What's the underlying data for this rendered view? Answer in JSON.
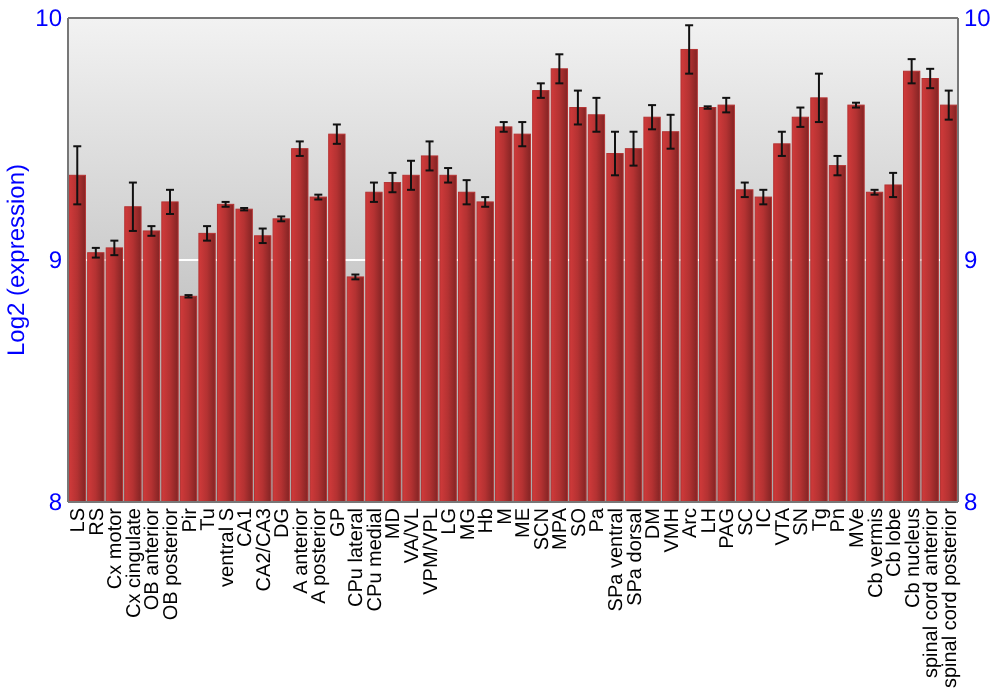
{
  "chart_data": {
    "type": "bar",
    "ylabel": "Log2 (expression)",
    "categories": [
      "LS",
      "RS",
      "Cx motor",
      "Cx cingulate",
      "OB anterior",
      "OB posterior",
      "Pir",
      "Tu",
      "ventral S",
      "CA1",
      "CA2/CA3",
      "DG",
      "A anterior",
      "A posterior",
      "GP",
      "CPu lateral",
      "CPu medial",
      "MD",
      "VA/VL",
      "VPM/VPL",
      "LG",
      "MG",
      "Hb",
      "M",
      "ME",
      "SCN",
      "MPA",
      "SO",
      "Pa",
      "SPa ventral",
      "SPa dorsal",
      "DM",
      "VMH",
      "Arc",
      "LH",
      "PAG",
      "SC",
      "IC",
      "VTA",
      "SN",
      "Tg",
      "Pn",
      "MVe",
      "Cb vermis",
      "Cb lobe",
      "Cb nucleus",
      "spinal cord anterior",
      "spinal cord posterior"
    ],
    "values": [
      9.35,
      9.03,
      9.05,
      9.22,
      9.12,
      9.24,
      8.85,
      9.11,
      9.23,
      9.21,
      9.1,
      9.17,
      9.46,
      9.26,
      9.52,
      8.93,
      9.28,
      9.32,
      9.35,
      9.43,
      9.35,
      9.28,
      9.24,
      9.55,
      9.52,
      9.7,
      9.79,
      9.63,
      9.6,
      9.44,
      9.46,
      9.59,
      9.53,
      9.87,
      9.63,
      9.64,
      9.29,
      9.26,
      9.48,
      9.59,
      9.67,
      9.39,
      9.64,
      9.28,
      9.31,
      9.78,
      9.75,
      9.64
    ],
    "errors": [
      0.12,
      0.02,
      0.03,
      0.1,
      0.02,
      0.05,
      0.005,
      0.03,
      0.01,
      0.005,
      0.03,
      0.01,
      0.03,
      0.01,
      0.04,
      0.01,
      0.04,
      0.04,
      0.06,
      0.06,
      0.03,
      0.05,
      0.02,
      0.02,
      0.05,
      0.03,
      0.06,
      0.07,
      0.07,
      0.09,
      0.07,
      0.05,
      0.07,
      0.1,
      0.005,
      0.03,
      0.03,
      0.03,
      0.05,
      0.04,
      0.1,
      0.04,
      0.01,
      0.01,
      0.05,
      0.05,
      0.04,
      0.06
    ],
    "color": "#b43232",
    "ylim": [
      8,
      10
    ],
    "yticks": [
      8,
      9,
      10
    ],
    "y2lim": [
      8,
      10
    ],
    "y2ticks": [
      8,
      9,
      10
    ],
    "grid": "y"
  }
}
